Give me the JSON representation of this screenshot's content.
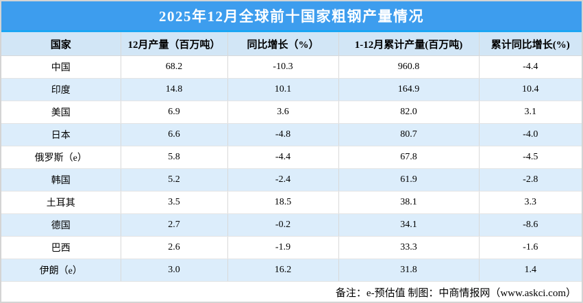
{
  "chart_data": {
    "type": "table",
    "title": "2025年12月全球前十国家粗钢产量情况",
    "columns": [
      "国家",
      "12月产量（百万吨）",
      "同比增长（%）",
      "1-12月累计产量(百万吨)",
      "累计同比增长(%)"
    ],
    "rows": [
      [
        "中国",
        "68.2",
        "-10.3",
        "960.8",
        "-4.4"
      ],
      [
        "印度",
        "14.8",
        "10.1",
        "164.9",
        "10.4"
      ],
      [
        "美国",
        "6.9",
        "3.6",
        "82.0",
        "3.1"
      ],
      [
        "日本",
        "6.6",
        "-4.8",
        "80.7",
        "-4.0"
      ],
      [
        "俄罗斯（e）",
        "5.8",
        "-4.4",
        "67.8",
        "-4.5"
      ],
      [
        "韩国",
        "5.2",
        "-2.4",
        "61.9",
        "-2.8"
      ],
      [
        "土耳其",
        "3.5",
        "18.5",
        "38.1",
        "3.3"
      ],
      [
        "德国",
        "2.7",
        "-0.2",
        "34.1",
        "-8.6"
      ],
      [
        "巴西",
        "2.6",
        "-1.9",
        "33.3",
        "-1.6"
      ],
      [
        "伊朗（e）",
        "3.0",
        "16.2",
        "31.8",
        "1.4"
      ]
    ],
    "note": "备注：e-预估值 制图：中商情报网（www.askci.com）"
  },
  "colors": {
    "title_bg": "#3D9DEE",
    "title_text": "#FFFFFF",
    "divider": "#1AA6F4",
    "header_bg": "#D2E6F6",
    "row_bg": "#FFFFFF",
    "alt_row_bg": "#DCEDFB",
    "grid_border": "#D9D9D9",
    "text": "#000000"
  }
}
